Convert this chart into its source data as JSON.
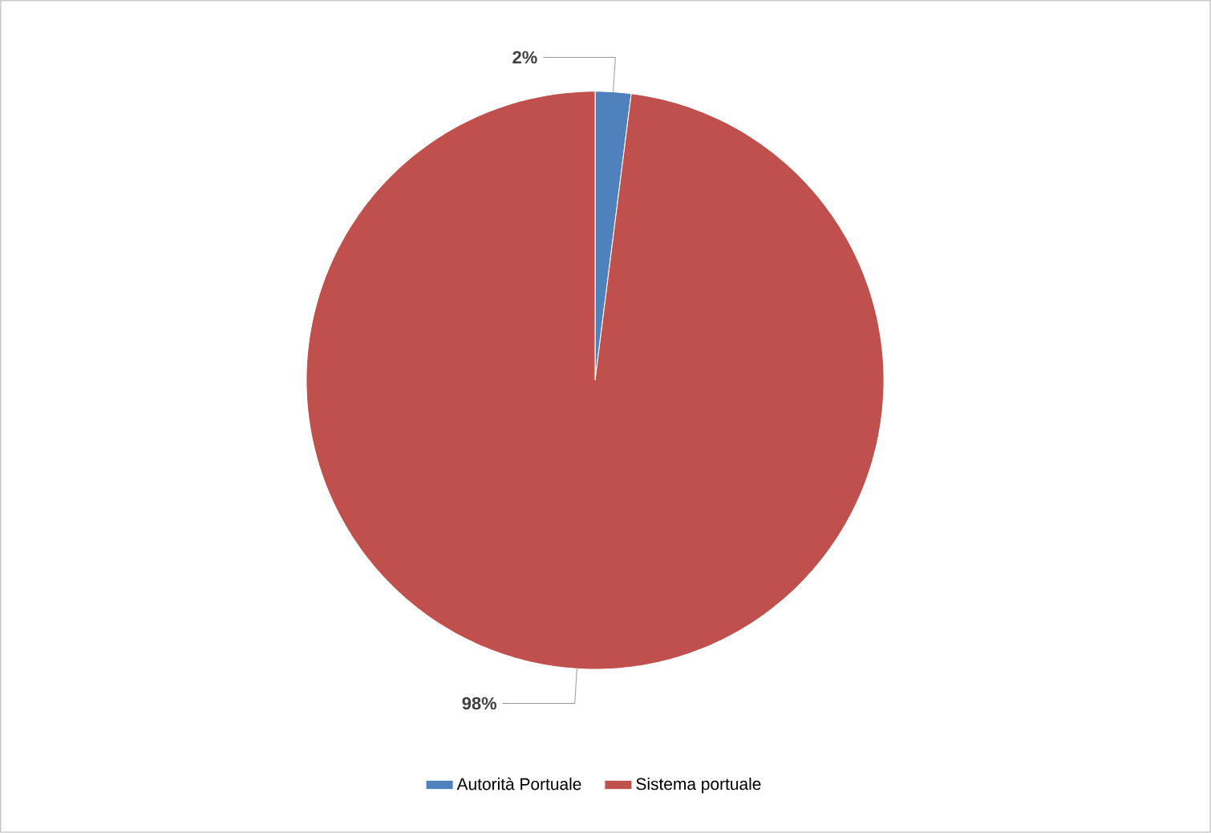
{
  "chart_data": {
    "type": "pie",
    "categories": [
      "Autorità Portuale",
      "Sistema portuale"
    ],
    "values": [
      2,
      98
    ],
    "colors": [
      "#4f81bd",
      "#c0504d"
    ],
    "value_labels": [
      "2%",
      "98%"
    ],
    "legend": "bottom"
  }
}
